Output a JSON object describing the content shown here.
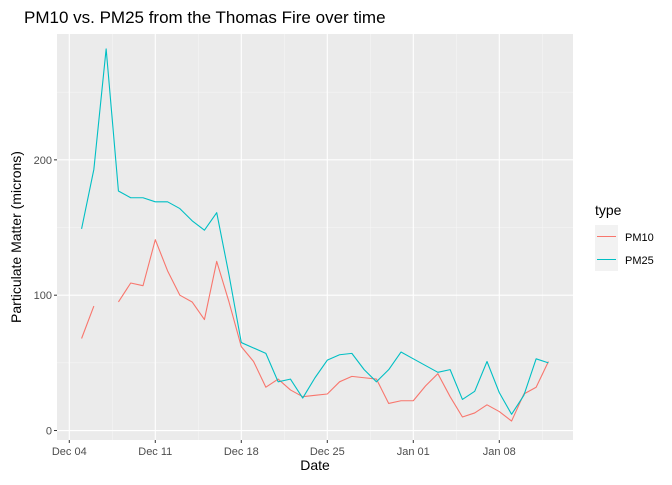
{
  "chart_data": {
    "type": "line",
    "title": "PM10 vs. PM25 from the Thomas Fire over time",
    "xlabel": "Date",
    "ylabel": "Particulate Matter (microns)",
    "x_ticks": [
      {
        "date": "2017-12-04",
        "label": "Dec 04"
      },
      {
        "date": "2017-12-11",
        "label": "Dec 11"
      },
      {
        "date": "2017-12-18",
        "label": "Dec 18"
      },
      {
        "date": "2017-12-25",
        "label": "Dec 25"
      },
      {
        "date": "2018-01-01",
        "label": "Jan 01"
      },
      {
        "date": "2018-01-08",
        "label": "Jan 08"
      }
    ],
    "y_ticks": [
      0,
      100,
      200
    ],
    "xlim": [
      "2017-12-03",
      "2018-01-14"
    ],
    "ylim": [
      -7,
      293
    ],
    "grid": true,
    "legend": {
      "title": "type",
      "placement": "right"
    },
    "series": [
      {
        "name": "PM10",
        "color": "#F8766D",
        "points": [
          [
            "2017-12-05",
            68
          ],
          [
            "2017-12-06",
            92
          ],
          [
            "2017-12-07",
            null
          ],
          [
            "2017-12-08",
            95
          ],
          [
            "2017-12-09",
            109
          ],
          [
            "2017-12-10",
            107
          ],
          [
            "2017-12-11",
            141
          ],
          [
            "2017-12-12",
            118
          ],
          [
            "2017-12-13",
            100
          ],
          [
            "2017-12-14",
            95
          ],
          [
            "2017-12-15",
            82
          ],
          [
            "2017-12-16",
            125
          ],
          [
            "2017-12-17",
            95
          ],
          [
            "2017-12-18",
            62
          ],
          [
            "2017-12-19",
            51
          ],
          [
            "2017-12-20",
            32
          ],
          [
            "2017-12-21",
            38
          ],
          [
            "2017-12-22",
            30
          ],
          [
            "2017-12-23",
            25
          ],
          [
            "2017-12-24",
            26
          ],
          [
            "2017-12-25",
            27
          ],
          [
            "2017-12-26",
            36
          ],
          [
            "2017-12-27",
            40
          ],
          [
            "2017-12-28",
            39
          ],
          [
            "2017-12-29",
            38
          ],
          [
            "2017-12-30",
            20
          ],
          [
            "2017-12-31",
            22
          ],
          [
            "2018-01-01",
            22
          ],
          [
            "2018-01-02",
            33
          ],
          [
            "2018-01-03",
            42
          ],
          [
            "2018-01-04",
            25
          ],
          [
            "2018-01-05",
            10
          ],
          [
            "2018-01-06",
            13
          ],
          [
            "2018-01-07",
            19
          ],
          [
            "2018-01-08",
            14
          ],
          [
            "2018-01-09",
            7
          ],
          [
            "2018-01-10",
            27
          ],
          [
            "2018-01-11",
            32
          ],
          [
            "2018-01-12",
            51
          ]
        ]
      },
      {
        "name": "PM25",
        "color": "#00BFC4",
        "points": [
          [
            "2017-12-05",
            149
          ],
          [
            "2017-12-06",
            193
          ],
          [
            "2017-12-07",
            282
          ],
          [
            "2017-12-08",
            177
          ],
          [
            "2017-12-09",
            172
          ],
          [
            "2017-12-10",
            172
          ],
          [
            "2017-12-11",
            169
          ],
          [
            "2017-12-12",
            169
          ],
          [
            "2017-12-13",
            164
          ],
          [
            "2017-12-14",
            155
          ],
          [
            "2017-12-15",
            148
          ],
          [
            "2017-12-16",
            161
          ],
          [
            "2017-12-17",
            115
          ],
          [
            "2017-12-18",
            65
          ],
          [
            "2017-12-19",
            61
          ],
          [
            "2017-12-20",
            57
          ],
          [
            "2017-12-21",
            36
          ],
          [
            "2017-12-22",
            38
          ],
          [
            "2017-12-23",
            24
          ],
          [
            "2017-12-24",
            39
          ],
          [
            "2017-12-25",
            52
          ],
          [
            "2017-12-26",
            56
          ],
          [
            "2017-12-27",
            57
          ],
          [
            "2017-12-28",
            45
          ],
          [
            "2017-12-29",
            36
          ],
          [
            "2017-12-30",
            45
          ],
          [
            "2017-12-31",
            58
          ],
          [
            "2018-01-01",
            53
          ],
          [
            "2018-01-02",
            48
          ],
          [
            "2018-01-03",
            43
          ],
          [
            "2018-01-04",
            45
          ],
          [
            "2018-01-05",
            23
          ],
          [
            "2018-01-06",
            29
          ],
          [
            "2018-01-07",
            51
          ],
          [
            "2018-01-08",
            28
          ],
          [
            "2018-01-09",
            12
          ],
          [
            "2018-01-10",
            26
          ],
          [
            "2018-01-11",
            53
          ],
          [
            "2018-01-12",
            50
          ]
        ]
      }
    ]
  }
}
